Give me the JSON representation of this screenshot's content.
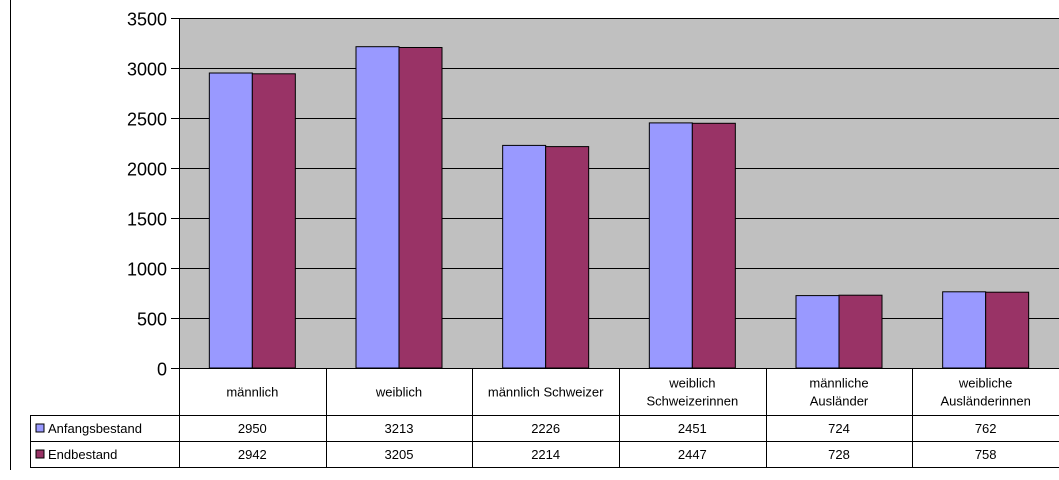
{
  "chart_data": {
    "type": "bar",
    "categories": [
      [
        "männlich"
      ],
      [
        "weiblich"
      ],
      [
        "männlich Schweizer"
      ],
      [
        "weiblich",
        "Schweizerinnen"
      ],
      [
        "männliche",
        "Ausländer"
      ],
      [
        "weibliche",
        "Ausländerinnen"
      ]
    ],
    "series": [
      {
        "name": "Anfangsbestand",
        "values": [
          2950,
          3213,
          2226,
          2451,
          724,
          762
        ],
        "color": "#9999ff"
      },
      {
        "name": "Endbestand",
        "values": [
          2942,
          3205,
          2214,
          2447,
          728,
          758
        ],
        "color": "#993366"
      }
    ],
    "ylim": [
      0,
      3500
    ],
    "yticks": [
      0,
      500,
      1000,
      1500,
      2000,
      2500,
      3000,
      3500
    ],
    "grid": true,
    "plot_background": "#c0c0c0",
    "legend": "data-table-left",
    "data_table": true
  }
}
